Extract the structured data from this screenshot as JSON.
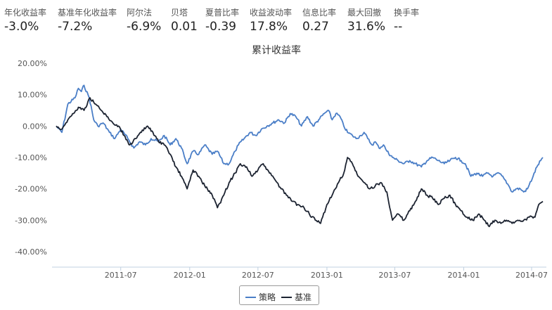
{
  "metrics": [
    {
      "label": "年化收益率",
      "value": "-3.0%"
    },
    {
      "label": "基准年化收益率",
      "value": "-7.2%"
    },
    {
      "label": "阿尔法",
      "value": "-6.9%"
    },
    {
      "label": "贝塔",
      "value": "0.01"
    },
    {
      "label": "夏普比率",
      "value": "-0.39"
    },
    {
      "label": "收益波动率",
      "value": "17.8%"
    },
    {
      "label": "信息比率",
      "value": "0.27"
    },
    {
      "label": "最大回撤",
      "value": "31.6%"
    },
    {
      "label": "换手率",
      "value": "--"
    }
  ],
  "chart_data": {
    "type": "line",
    "title": "累计收益率",
    "xlabel": "",
    "ylabel": "",
    "ylim": [
      -40,
      20
    ],
    "yticks": [
      20,
      10,
      0,
      -10,
      -20,
      -30,
      -40
    ],
    "ytick_labels": [
      "20.00%",
      "10.00%",
      "0.00%",
      "-10.00%",
      "-20.00%",
      "-30.00%",
      "-40.00%"
    ],
    "xticks": [
      "2011-07",
      "2012-01",
      "2012-07",
      "2013-01",
      "2013-07",
      "2014-01",
      "2014-07"
    ],
    "xlim": [
      "2011-01-10",
      "2014-07-31"
    ],
    "grid": false,
    "legend_position": "bottom-center",
    "series": [
      {
        "name": "策略",
        "color": "#4a7ec7",
        "points": [
          [
            "2011-01-10",
            0
          ],
          [
            "2011-01-25",
            -2
          ],
          [
            "2011-02-10",
            7
          ],
          [
            "2011-03-01",
            9
          ],
          [
            "2011-03-10",
            12
          ],
          [
            "2011-03-18",
            11
          ],
          [
            "2011-03-25",
            13
          ],
          [
            "2011-04-08",
            9
          ],
          [
            "2011-04-20",
            2
          ],
          [
            "2011-05-01",
            0
          ],
          [
            "2011-05-15",
            1
          ],
          [
            "2011-06-01",
            -2
          ],
          [
            "2011-06-15",
            -4
          ],
          [
            "2011-07-01",
            -1
          ],
          [
            "2011-07-20",
            -4
          ],
          [
            "2011-08-05",
            -7
          ],
          [
            "2011-08-20",
            -5
          ],
          [
            "2011-09-05",
            -6
          ],
          [
            "2011-09-20",
            -4
          ],
          [
            "2011-10-10",
            -5
          ],
          [
            "2011-10-25",
            -3
          ],
          [
            "2011-11-10",
            -6
          ],
          [
            "2011-11-25",
            -4
          ],
          [
            "2011-12-10",
            -7
          ],
          [
            "2011-12-25",
            -12
          ],
          [
            "2012-01-10",
            -8
          ],
          [
            "2012-01-25",
            -9
          ],
          [
            "2012-02-10",
            -6
          ],
          [
            "2012-03-01",
            -9
          ],
          [
            "2012-03-15",
            -8
          ],
          [
            "2012-04-01",
            -12
          ],
          [
            "2012-04-15",
            -12
          ],
          [
            "2012-05-01",
            -8
          ],
          [
            "2012-05-10",
            -6
          ],
          [
            "2012-05-25",
            -4
          ],
          [
            "2012-06-10",
            -2
          ],
          [
            "2012-06-25",
            -3
          ],
          [
            "2012-07-10",
            -1
          ],
          [
            "2012-07-25",
            0
          ],
          [
            "2012-08-10",
            1
          ],
          [
            "2012-08-25",
            2
          ],
          [
            "2012-09-10",
            1
          ],
          [
            "2012-09-25",
            4
          ],
          [
            "2012-10-10",
            3
          ],
          [
            "2012-10-25",
            0
          ],
          [
            "2012-11-10",
            3
          ],
          [
            "2012-11-25",
            0
          ],
          [
            "2012-12-10",
            2
          ],
          [
            "2012-12-25",
            4
          ],
          [
            "2013-01-05",
            5
          ],
          [
            "2013-01-15",
            2
          ],
          [
            "2013-01-25",
            4
          ],
          [
            "2013-02-05",
            3
          ],
          [
            "2013-02-15",
            0
          ],
          [
            "2013-02-25",
            -2
          ],
          [
            "2013-03-10",
            -3
          ],
          [
            "2013-03-20",
            -4
          ],
          [
            "2013-04-01",
            -3
          ],
          [
            "2013-04-10",
            -2
          ],
          [
            "2013-04-20",
            -4
          ],
          [
            "2013-05-01",
            -6
          ],
          [
            "2013-05-10",
            -5
          ],
          [
            "2013-05-20",
            -7
          ],
          [
            "2013-06-01",
            -6
          ],
          [
            "2013-06-10",
            -8
          ],
          [
            "2013-06-25",
            -10
          ],
          [
            "2013-07-10",
            -11
          ],
          [
            "2013-07-25",
            -12
          ],
          [
            "2013-08-10",
            -11
          ],
          [
            "2013-08-25",
            -12
          ],
          [
            "2013-09-10",
            -13
          ],
          [
            "2013-09-25",
            -11
          ],
          [
            "2013-10-10",
            -10
          ],
          [
            "2013-10-25",
            -11
          ],
          [
            "2013-11-10",
            -12
          ],
          [
            "2013-11-25",
            -11
          ],
          [
            "2013-12-10",
            -10
          ],
          [
            "2013-12-25",
            -11
          ],
          [
            "2014-01-05",
            -12
          ],
          [
            "2014-01-20",
            -16
          ],
          [
            "2014-02-05",
            -15
          ],
          [
            "2014-02-20",
            -16
          ],
          [
            "2014-03-05",
            -15
          ],
          [
            "2014-03-20",
            -16
          ],
          [
            "2014-04-05",
            -15
          ],
          [
            "2014-04-20",
            -17
          ],
          [
            "2014-05-01",
            -19
          ],
          [
            "2014-05-10",
            -21
          ],
          [
            "2014-05-20",
            -20
          ],
          [
            "2014-06-01",
            -20
          ],
          [
            "2014-06-10",
            -21
          ],
          [
            "2014-06-20",
            -20
          ],
          [
            "2014-07-05",
            -16
          ],
          [
            "2014-07-15",
            -13
          ],
          [
            "2014-07-25",
            -11
          ],
          [
            "2014-07-31",
            -10
          ]
        ]
      },
      {
        "name": "基准",
        "color": "#1c2331",
        "points": [
          [
            "2011-01-10",
            0
          ],
          [
            "2011-01-25",
            -1
          ],
          [
            "2011-02-10",
            2
          ],
          [
            "2011-02-25",
            4
          ],
          [
            "2011-03-10",
            6
          ],
          [
            "2011-03-25",
            5
          ],
          [
            "2011-04-10",
            9
          ],
          [
            "2011-04-25",
            7
          ],
          [
            "2011-05-10",
            5
          ],
          [
            "2011-05-25",
            3
          ],
          [
            "2011-06-10",
            1
          ],
          [
            "2011-06-25",
            0
          ],
          [
            "2011-07-10",
            -3
          ],
          [
            "2011-07-25",
            -6
          ],
          [
            "2011-08-10",
            -4
          ],
          [
            "2011-08-25",
            -2
          ],
          [
            "2011-09-10",
            0
          ],
          [
            "2011-09-25",
            -2
          ],
          [
            "2011-10-10",
            -5
          ],
          [
            "2011-10-25",
            -6
          ],
          [
            "2011-11-10",
            -9
          ],
          [
            "2011-11-25",
            -13
          ],
          [
            "2011-12-10",
            -16
          ],
          [
            "2011-12-25",
            -20
          ],
          [
            "2012-01-10",
            -14
          ],
          [
            "2012-01-25",
            -16
          ],
          [
            "2012-02-10",
            -19
          ],
          [
            "2012-03-01",
            -22
          ],
          [
            "2012-03-15",
            -26
          ],
          [
            "2012-04-01",
            -22
          ],
          [
            "2012-04-15",
            -18
          ],
          [
            "2012-05-01",
            -15
          ],
          [
            "2012-05-15",
            -12
          ],
          [
            "2012-06-01",
            -13
          ],
          [
            "2012-06-15",
            -16
          ],
          [
            "2012-07-01",
            -14
          ],
          [
            "2012-07-15",
            -12
          ],
          [
            "2012-08-01",
            -15
          ],
          [
            "2012-08-15",
            -17
          ],
          [
            "2012-09-01",
            -20
          ],
          [
            "2012-09-15",
            -22
          ],
          [
            "2012-10-01",
            -24
          ],
          [
            "2012-10-15",
            -25
          ],
          [
            "2012-11-01",
            -26
          ],
          [
            "2012-11-15",
            -28
          ],
          [
            "2012-12-01",
            -30
          ],
          [
            "2012-12-15",
            -31
          ],
          [
            "2013-01-01",
            -25
          ],
          [
            "2013-01-15",
            -22
          ],
          [
            "2013-02-01",
            -18
          ],
          [
            "2013-02-15",
            -15
          ],
          [
            "2013-02-25",
            -10
          ],
          [
            "2013-03-10",
            -12
          ],
          [
            "2013-03-25",
            -16
          ],
          [
            "2013-04-10",
            -18
          ],
          [
            "2013-04-25",
            -20
          ],
          [
            "2013-05-10",
            -19
          ],
          [
            "2013-05-25",
            -18
          ],
          [
            "2013-06-10",
            -21
          ],
          [
            "2013-06-25",
            -30
          ],
          [
            "2013-07-10",
            -28
          ],
          [
            "2013-07-25",
            -30
          ],
          [
            "2013-08-10",
            -27
          ],
          [
            "2013-08-25",
            -24
          ],
          [
            "2013-09-10",
            -20
          ],
          [
            "2013-09-25",
            -22
          ],
          [
            "2013-10-10",
            -23
          ],
          [
            "2013-10-25",
            -25
          ],
          [
            "2013-11-10",
            -23
          ],
          [
            "2013-11-25",
            -22
          ],
          [
            "2013-12-10",
            -25
          ],
          [
            "2013-12-25",
            -27
          ],
          [
            "2014-01-10",
            -29
          ],
          [
            "2014-01-25",
            -30
          ],
          [
            "2014-02-10",
            -28
          ],
          [
            "2014-02-25",
            -30
          ],
          [
            "2014-03-10",
            -32
          ],
          [
            "2014-03-25",
            -30
          ],
          [
            "2014-04-10",
            -31
          ],
          [
            "2014-04-25",
            -30
          ],
          [
            "2014-05-10",
            -31
          ],
          [
            "2014-05-25",
            -30
          ],
          [
            "2014-06-10",
            -30
          ],
          [
            "2014-06-25",
            -29
          ],
          [
            "2014-07-10",
            -29
          ],
          [
            "2014-07-20",
            -25
          ],
          [
            "2014-07-31",
            -24
          ]
        ]
      }
    ]
  }
}
